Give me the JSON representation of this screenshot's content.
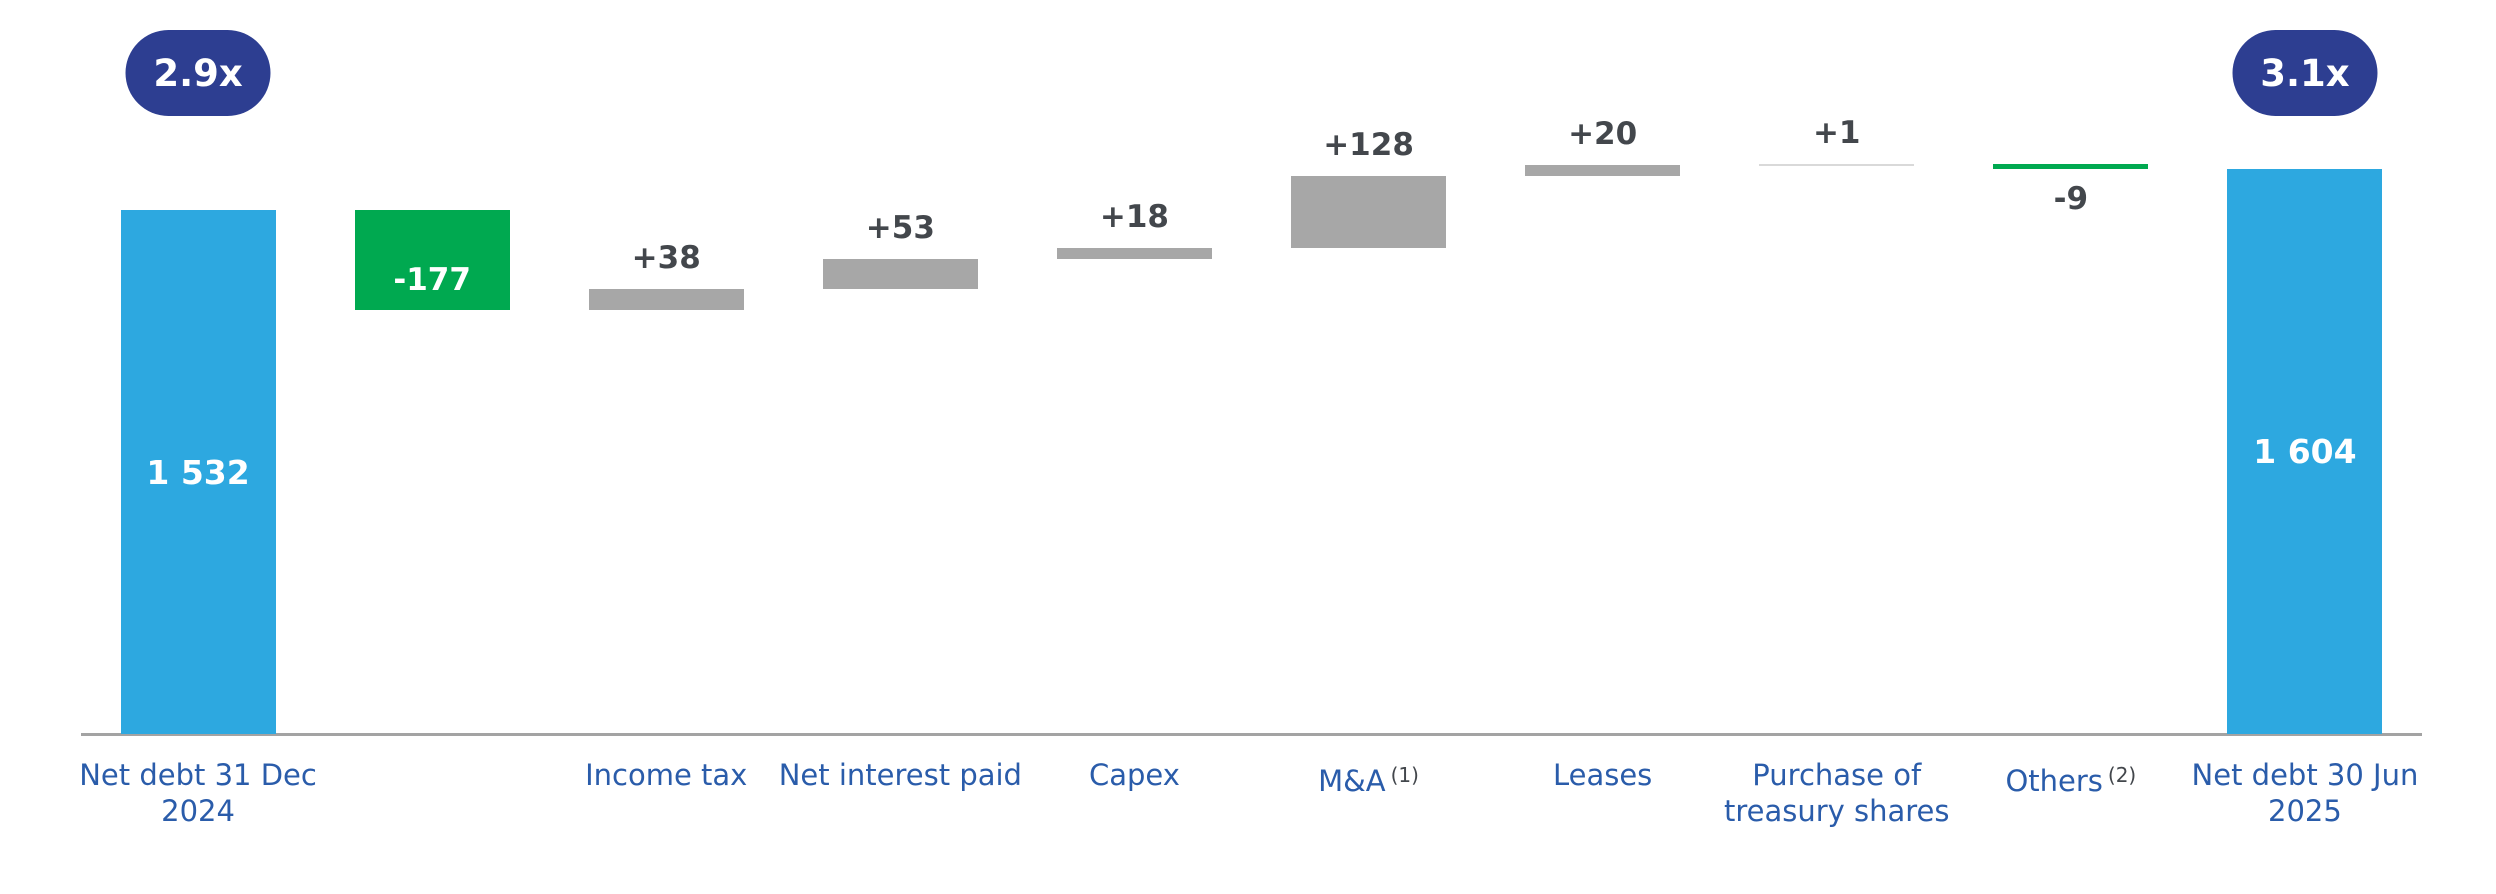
{
  "chart_data": {
    "type": "bar",
    "subtype": "waterfall",
    "title": "",
    "description": "Net debt bridge from 31 Dec 2024 to 30 Jun 2025 with leverage multiples",
    "ylim": [
      0,
      1700
    ],
    "grid": false,
    "legend": false,
    "badges": {
      "start": "2.9x",
      "end": "3.1x"
    },
    "columns": [
      {
        "category_lines": [
          "Net debt 31 Dec",
          "2024"
        ],
        "superscript": "",
        "value": 1532,
        "value_label": "1 532",
        "kind": "total",
        "color_key": "blue",
        "label_pos": "inside",
        "badge": "2.9x"
      },
      {
        "category_lines": [],
        "superscript": "",
        "value": -177,
        "value_label": "-177",
        "kind": "delta",
        "color_key": "green",
        "label_pos": "inside-bottom",
        "badge": ""
      },
      {
        "category_lines": [
          "Income tax"
        ],
        "superscript": "",
        "value": 38,
        "value_label": "+38",
        "kind": "delta",
        "color_key": "gray",
        "label_pos": "above",
        "badge": ""
      },
      {
        "category_lines": [
          "Net interest paid"
        ],
        "superscript": "",
        "value": 53,
        "value_label": "+53",
        "kind": "delta",
        "color_key": "gray",
        "label_pos": "above",
        "badge": ""
      },
      {
        "category_lines": [
          "Capex"
        ],
        "superscript": "",
        "value": 18,
        "value_label": "+18",
        "kind": "delta",
        "color_key": "gray",
        "label_pos": "above",
        "badge": ""
      },
      {
        "category_lines": [
          "M&A"
        ],
        "superscript": "(1)",
        "value": 128,
        "value_label": "+128",
        "kind": "delta",
        "color_key": "gray",
        "label_pos": "above",
        "badge": ""
      },
      {
        "category_lines": [
          "Leases"
        ],
        "superscript": "",
        "value": 20,
        "value_label": "+20",
        "kind": "delta",
        "color_key": "gray",
        "label_pos": "above",
        "badge": ""
      },
      {
        "category_lines": [
          "Purchase of",
          "treasury shares"
        ],
        "superscript": "",
        "value": 1,
        "value_label": "+1",
        "kind": "delta",
        "color_key": "light_gray",
        "label_pos": "above",
        "badge": ""
      },
      {
        "category_lines": [
          "Others"
        ],
        "superscript": "(2)",
        "value": -9,
        "value_label": "-9",
        "kind": "delta",
        "color_key": "green",
        "label_pos": "below",
        "badge": ""
      },
      {
        "category_lines": [
          "Net debt 30 Jun",
          "2025"
        ],
        "superscript": "",
        "value": 1604,
        "value_label": "1 604",
        "kind": "total",
        "color_key": "blue",
        "label_pos": "inside",
        "badge": "3.1x"
      }
    ],
    "colors": {
      "blue": "#2DA8E0",
      "green": "#00A950",
      "gray": "#A7A7A7",
      "light_gray": "#D9D9D9",
      "badge_navy": "#2D3E91",
      "axis_label_blue": "#2A5CAA",
      "delta_label_gray": "#43474C",
      "axis_line_gray": "#A3A3A3"
    }
  }
}
